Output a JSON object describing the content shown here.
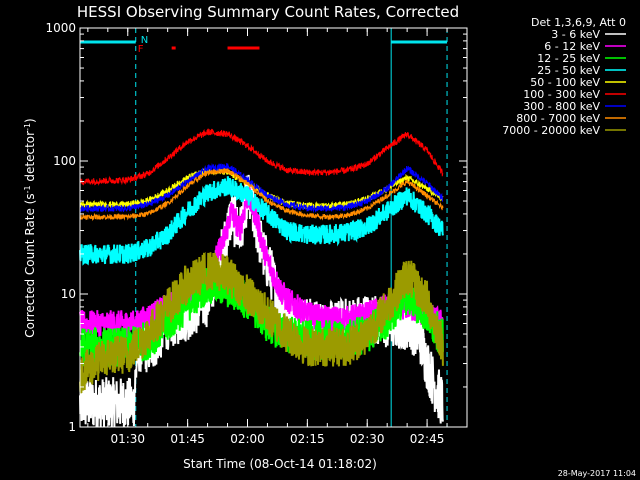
{
  "colors": {
    "background": "#000000",
    "axis": "#ffffff",
    "text": "#ffffff",
    "interval_line": "#00e5ee",
    "flag": "#ff0000"
  },
  "chart_data": {
    "type": "line",
    "title": "HESSI Observing Summary Count Rates, Corrected",
    "xlabel": "Start Time (08-Oct-14 01:18:02)",
    "ylabel": "Corrected Count Rate (s⁻¹ detector⁻¹)",
    "ylabel_parts": {
      "main": "Corrected Count Rate (s",
      "sup1": "-1",
      "mid": " detector",
      "sup2": "-1",
      "end": ")"
    },
    "xscale": "time",
    "yscale": "log",
    "xlim": [
      "01:18:02",
      "02:55:00"
    ],
    "ylim": [
      1,
      1000
    ],
    "x_tick_labels": [
      "01:30",
      "01:45",
      "02:00",
      "02:15",
      "02:30",
      "02:45"
    ],
    "y_tick_labels": [
      "1",
      "10",
      "100",
      "1000"
    ],
    "legend_title": "Det 1,3,6,9, Att 0",
    "legend_position": "top-right",
    "timestamp": "28-May-2017 11:04",
    "flags": [
      {
        "label": "N",
        "color": "#00e5ee"
      },
      {
        "label": "F",
        "color": "#ff0000"
      }
    ],
    "night_intervals": [
      {
        "start": "01:18:02",
        "end": "01:32:00"
      },
      {
        "start": "02:36:00",
        "end": "02:50:00"
      }
    ],
    "flare_intervals": [
      {
        "start": "01:41:00",
        "end": "01:42:00"
      },
      {
        "start": "01:55:00",
        "end": "02:03:00"
      }
    ],
    "series": [
      {
        "name": "3 - 6 keV",
        "color": "#ffffff",
        "noise": 0.4,
        "mark": 2,
        "x": [
          "01:18:02",
          "01:31:30",
          "01:32:30",
          "01:36:00",
          "01:40:00",
          "01:45:00",
          "01:50:00",
          "01:54:00",
          "01:56:00",
          "01:58:00",
          "02:00:00",
          "02:02:00",
          "02:04:00",
          "02:06:00",
          "02:08:00",
          "02:10:00",
          "02:15:00",
          "02:20:00",
          "02:25:00",
          "02:30:00",
          "02:35:00",
          "02:40:00",
          "02:43:00",
          "02:45:00",
          "02:47:00",
          "02:49:00"
        ],
        "y": [
          1.5,
          1.5,
          4,
          4,
          6,
          7,
          9,
          22,
          40,
          28,
          55,
          35,
          20,
          14,
          9,
          6.5,
          6,
          5.5,
          6,
          6.5,
          6,
          6,
          5,
          3,
          2,
          1.5
        ]
      },
      {
        "name": "6 - 12 keV",
        "color": "#ff00ff",
        "noise": 0.2,
        "mark": 2,
        "x": [
          "01:18:02",
          "01:32:00",
          "01:36:00",
          "01:40:00",
          "01:45:00",
          "01:50:00",
          "01:54:00",
          "01:56:00",
          "01:58:00",
          "02:00:00",
          "02:02:00",
          "02:04:00",
          "02:06:00",
          "02:08:00",
          "02:10:00",
          "02:15:00",
          "02:20:00",
          "02:25:00",
          "02:30:00",
          "02:35:00",
          "02:40:00",
          "02:45:00",
          "02:49:00"
        ],
        "y": [
          6,
          6,
          7,
          8,
          10,
          13,
          25,
          42,
          30,
          55,
          40,
          22,
          15,
          11,
          9,
          7,
          6.5,
          6.5,
          7,
          8,
          8,
          7,
          6
        ]
      },
      {
        "name": "12 - 25 keV",
        "color": "#00ff00",
        "noise": 0.3,
        "mark": 2,
        "x": [
          "01:18:02",
          "01:30:00",
          "01:35:00",
          "01:40:00",
          "01:45:00",
          "01:50:00",
          "01:55:00",
          "02:00:00",
          "02:05:00",
          "02:10:00",
          "02:15:00",
          "02:20:00",
          "02:25:00",
          "02:30:00",
          "02:35:00",
          "02:40:00",
          "02:45:00",
          "02:49:00"
        ],
        "y": [
          4,
          4,
          4.5,
          6,
          8.5,
          12,
          11,
          9,
          6,
          5,
          4.5,
          4.5,
          4.5,
          5,
          6.5,
          10,
          7,
          4.5
        ]
      },
      {
        "name": "25 - 50 keV",
        "color": "#00ffff",
        "noise": 0.15,
        "mark": 2,
        "x": [
          "01:18:02",
          "01:30:00",
          "01:35:00",
          "01:40:00",
          "01:45:00",
          "01:50:00",
          "01:55:00",
          "02:00:00",
          "02:05:00",
          "02:10:00",
          "02:15:00",
          "02:20:00",
          "02:25:00",
          "02:30:00",
          "02:35:00",
          "02:40:00",
          "02:45:00",
          "02:49:00"
        ],
        "y": [
          20,
          20,
          22,
          28,
          42,
          58,
          65,
          55,
          40,
          30,
          28,
          28,
          29,
          32,
          42,
          55,
          40,
          30
        ]
      },
      {
        "name": "50 - 100 keV",
        "color": "#ffff00",
        "noise": 0.05,
        "mark": 1,
        "x": [
          "01:18:02",
          "01:30:00",
          "01:35:00",
          "01:40:00",
          "01:45:00",
          "01:50:00",
          "01:55:00",
          "02:00:00",
          "02:05:00",
          "02:10:00",
          "02:15:00",
          "02:20:00",
          "02:25:00",
          "02:30:00",
          "02:35:00",
          "02:40:00",
          "02:45:00",
          "02:49:00"
        ],
        "y": [
          47,
          47,
          50,
          60,
          75,
          85,
          82,
          68,
          55,
          48,
          46,
          46,
          47,
          52,
          62,
          75,
          62,
          52
        ]
      },
      {
        "name": "100 - 300 keV",
        "color": "#ff0000",
        "noise": 0.05,
        "mark": 1,
        "x": [
          "01:18:02",
          "01:30:00",
          "01:35:00",
          "01:40:00",
          "01:45:00",
          "01:50:00",
          "01:55:00",
          "02:00:00",
          "02:05:00",
          "02:10:00",
          "02:15:00",
          "02:20:00",
          "02:25:00",
          "02:30:00",
          "02:35:00",
          "02:40:00",
          "02:45:00",
          "02:49:00"
        ],
        "y": [
          70,
          72,
          80,
          105,
          140,
          165,
          160,
          130,
          100,
          85,
          82,
          82,
          85,
          95,
          125,
          160,
          120,
          80
        ]
      },
      {
        "name": "300 - 800 keV",
        "color": "#0000ff",
        "noise": 0.05,
        "mark": 1,
        "x": [
          "01:18:02",
          "01:30:00",
          "01:35:00",
          "01:40:00",
          "01:45:00",
          "01:50:00",
          "01:55:00",
          "02:00:00",
          "02:05:00",
          "02:10:00",
          "02:15:00",
          "02:20:00",
          "02:25:00",
          "02:30:00",
          "02:35:00",
          "02:40:00",
          "02:45:00",
          "02:49:00"
        ],
        "y": [
          44,
          44,
          47,
          55,
          70,
          88,
          92,
          72,
          55,
          47,
          44,
          44,
          45,
          50,
          62,
          88,
          68,
          52
        ]
      },
      {
        "name": "800 - 7000 keV",
        "color": "#ff8c00",
        "noise": 0.04,
        "mark": 1,
        "x": [
          "01:18:02",
          "01:30:00",
          "01:35:00",
          "01:40:00",
          "01:45:00",
          "01:50:00",
          "01:55:00",
          "02:00:00",
          "02:05:00",
          "02:10:00",
          "02:15:00",
          "02:20:00",
          "02:25:00",
          "02:30:00",
          "02:35:00",
          "02:40:00",
          "02:45:00",
          "02:49:00"
        ],
        "y": [
          38,
          38,
          40,
          48,
          65,
          82,
          85,
          68,
          50,
          42,
          39,
          38,
          39,
          44,
          55,
          70,
          55,
          44
        ]
      },
      {
        "name": "7000 - 20000 keV",
        "color": "#9b9b00",
        "noise": 0.3,
        "mark": 2,
        "x": [
          "01:18:02",
          "01:22:00",
          "01:26:00",
          "01:30:00",
          "01:35:00",
          "01:40:00",
          "01:45:00",
          "01:50:00",
          "01:55:00",
          "02:00:00",
          "02:05:00",
          "02:10:00",
          "02:15:00",
          "02:20:00",
          "02:25:00",
          "02:30:00",
          "02:35:00",
          "02:40:00",
          "02:45:00",
          "02:49:00"
        ],
        "y": [
          2.5,
          3,
          3.5,
          3.5,
          5,
          8,
          12,
          15,
          14,
          10,
          7,
          5,
          4,
          4,
          4,
          5,
          8,
          14,
          9,
          4
        ]
      }
    ]
  }
}
